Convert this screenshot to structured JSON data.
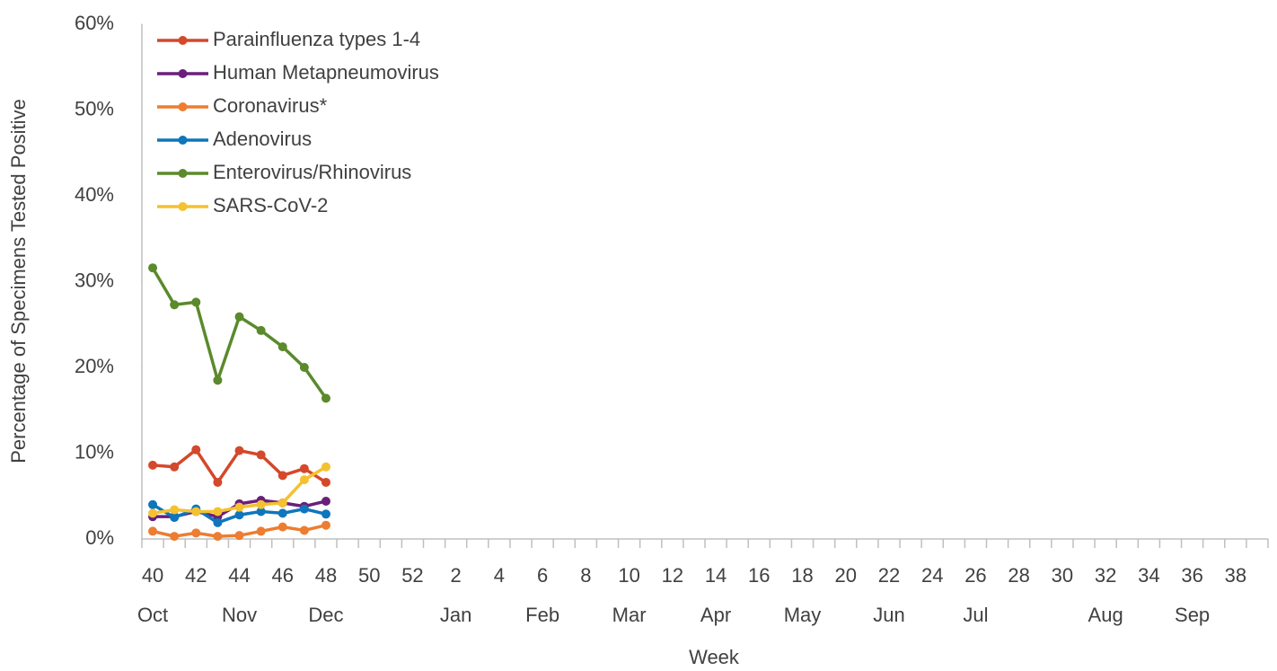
{
  "chart_data": {
    "type": "line",
    "y_label": "Percentage of Specimens Tested Positive",
    "x_label": "Week",
    "categories": [
      "40",
      null,
      "42",
      null,
      "44",
      null,
      "46",
      null,
      "48",
      null,
      "50",
      null,
      "52",
      null,
      "2",
      null,
      "4",
      null,
      "6",
      null,
      "8",
      null,
      "10",
      null,
      "12",
      null,
      "14",
      null,
      "16",
      null,
      "18",
      null,
      "20",
      null,
      "22",
      null,
      "24",
      null,
      "26",
      null,
      "28",
      null,
      "30",
      null,
      "32",
      null,
      "34",
      null,
      "36",
      null,
      "38",
      null
    ],
    "month_labels": [
      "Oct",
      null,
      null,
      null,
      "Nov",
      null,
      null,
      null,
      "Dec",
      null,
      null,
      null,
      null,
      null,
      "Jan",
      null,
      null,
      null,
      "Feb",
      null,
      null,
      null,
      "Mar",
      null,
      null,
      null,
      "Apr",
      null,
      null,
      null,
      "May",
      null,
      null,
      null,
      "Jun",
      null,
      null,
      null,
      "Jul",
      null,
      null,
      null,
      null,
      null,
      "Aug",
      null,
      null,
      null,
      "Sep",
      null,
      null,
      null
    ],
    "ylim": [
      0,
      60
    ],
    "yticks": [
      {
        "value": 0,
        "label": "0%"
      },
      {
        "value": 10,
        "label": "10%"
      },
      {
        "value": 20,
        "label": "20%"
      },
      {
        "value": 30,
        "label": "30%"
      },
      {
        "value": 40,
        "label": "40%"
      },
      {
        "value": 50,
        "label": "50%"
      },
      {
        "value": 60,
        "label": "60%"
      }
    ],
    "legend": "upper left",
    "series": [
      {
        "name": "Parainfluenza types 1-4",
        "color": "#d4482b",
        "values": [
          8.6,
          8.4,
          10.4,
          6.6,
          10.3,
          9.8,
          7.4,
          8.2,
          6.6,
          null,
          null,
          null,
          null,
          null,
          null,
          null,
          null,
          null,
          null,
          null,
          null,
          null,
          null,
          null,
          null,
          null,
          null,
          null,
          null,
          null,
          null,
          null,
          null,
          null,
          null,
          null,
          null,
          null,
          null,
          null,
          null,
          null,
          null,
          null,
          null,
          null,
          null,
          null,
          null,
          null,
          null,
          null
        ]
      },
      {
        "name": "Human Metapneumovirus",
        "color": "#6a1f7a",
        "values": [
          2.6,
          2.6,
          3.2,
          2.6,
          4.1,
          4.5,
          4.2,
          3.8,
          4.4,
          null,
          null,
          null,
          null,
          null,
          null,
          null,
          null,
          null,
          null,
          null,
          null,
          null,
          null,
          null,
          null,
          null,
          null,
          null,
          null,
          null,
          null,
          null,
          null,
          null,
          null,
          null,
          null,
          null,
          null,
          null,
          null,
          null,
          null,
          null,
          null,
          null,
          null,
          null,
          null,
          null,
          null,
          null
        ]
      },
      {
        "name": "Coronavirus*",
        "color": "#ed7d31",
        "values": [
          0.9,
          0.3,
          0.7,
          0.3,
          0.4,
          0.9,
          1.4,
          1.0,
          1.6,
          null,
          null,
          null,
          null,
          null,
          null,
          null,
          null,
          null,
          null,
          null,
          null,
          null,
          null,
          null,
          null,
          null,
          null,
          null,
          null,
          null,
          null,
          null,
          null,
          null,
          null,
          null,
          null,
          null,
          null,
          null,
          null,
          null,
          null,
          null,
          null,
          null,
          null,
          null,
          null,
          null,
          null,
          null
        ]
      },
      {
        "name": "Adenovirus",
        "color": "#0f75bc",
        "values": [
          4.0,
          2.5,
          3.5,
          1.9,
          2.8,
          3.2,
          3.0,
          3.5,
          2.9,
          null,
          null,
          null,
          null,
          null,
          null,
          null,
          null,
          null,
          null,
          null,
          null,
          null,
          null,
          null,
          null,
          null,
          null,
          null,
          null,
          null,
          null,
          null,
          null,
          null,
          null,
          null,
          null,
          null,
          null,
          null,
          null,
          null,
          null,
          null,
          null,
          null,
          null,
          null,
          null,
          null,
          null,
          null
        ]
      },
      {
        "name": "Enterovirus/Rhinovirus",
        "color": "#5a8a2c",
        "values": [
          31.6,
          27.3,
          27.6,
          18.5,
          25.9,
          24.3,
          22.4,
          20.0,
          16.4,
          null,
          null,
          null,
          null,
          null,
          null,
          null,
          null,
          null,
          null,
          null,
          null,
          null,
          null,
          null,
          null,
          null,
          null,
          null,
          null,
          null,
          null,
          null,
          null,
          null,
          null,
          null,
          null,
          null,
          null,
          null,
          null,
          null,
          null,
          null,
          null,
          null,
          null,
          null,
          null,
          null,
          null,
          null
        ]
      },
      {
        "name": "SARS-CoV-2",
        "color": "#f4c130",
        "values": [
          3.0,
          3.4,
          3.2,
          3.2,
          3.7,
          4.0,
          4.2,
          6.9,
          8.4,
          null,
          null,
          null,
          null,
          null,
          null,
          null,
          null,
          null,
          null,
          null,
          null,
          null,
          null,
          null,
          null,
          null,
          null,
          null,
          null,
          null,
          null,
          null,
          null,
          null,
          null,
          null,
          null,
          null,
          null,
          null,
          null,
          null,
          null,
          null,
          null,
          null,
          null,
          null,
          null,
          null,
          null,
          null
        ]
      }
    ]
  }
}
